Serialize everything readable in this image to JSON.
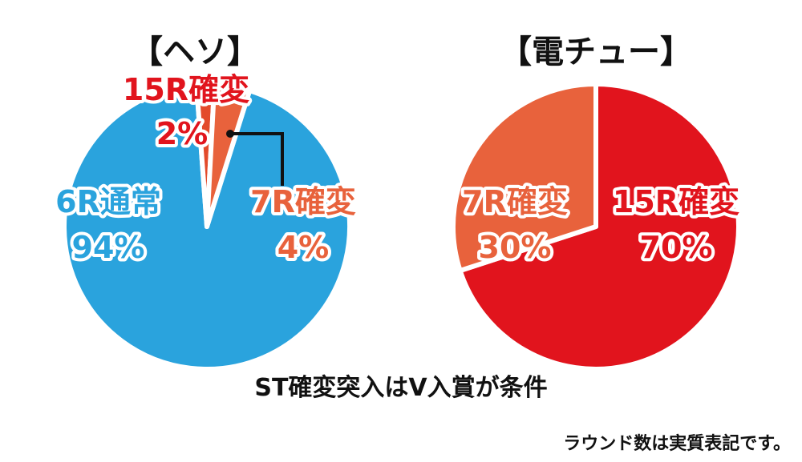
{
  "chart_data": [
    {
      "type": "pie",
      "title": "【ヘソ】",
      "slices": [
        {
          "label": "6R通常",
          "value_text": "94%",
          "value": 94,
          "color": "#2aa3dd"
        },
        {
          "label": "15R確変",
          "value_text": "2%",
          "value": 2,
          "color": "#e34a2b"
        },
        {
          "label": "7R確変",
          "value_text": "4%",
          "value": 4,
          "color": "#e8623c"
        }
      ]
    },
    {
      "type": "pie",
      "title": "【電チュー】",
      "slices": [
        {
          "label": "15R確変",
          "value_text": "70%",
          "value": 70,
          "color": "#e1141d"
        },
        {
          "label": "7R確変",
          "value_text": "30%",
          "value": 30,
          "color": "#e8623c"
        }
      ]
    }
  ],
  "caption": "ST確変突入はV入賞が条件",
  "note": "ラウンド数は実質表記です。"
}
